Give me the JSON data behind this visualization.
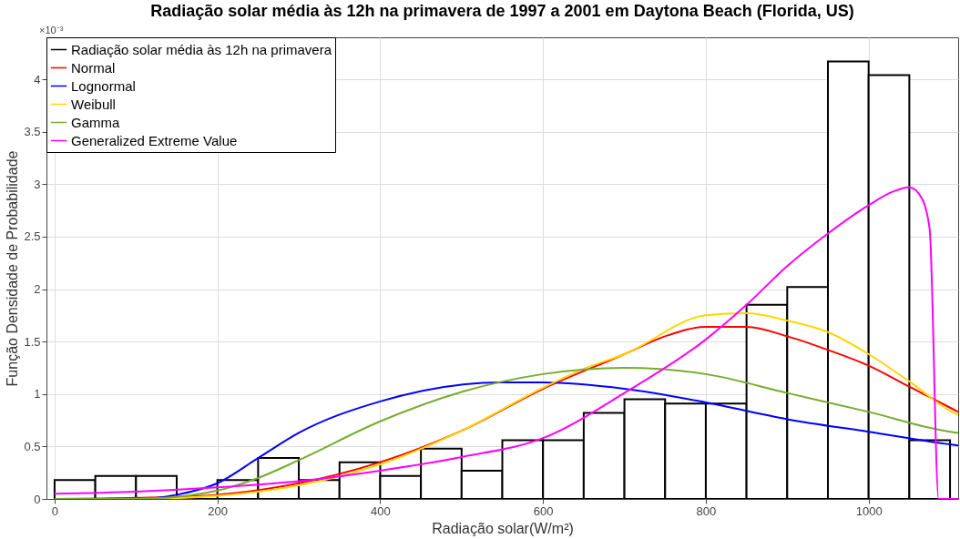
{
  "chart_data": {
    "type": "histogram",
    "title": "Radiação solar média às 12h na primavera de 1997 a 2001 em Daytona Beach (Florida, US)",
    "xlabel": "Radiação solar(W/m²)",
    "ylabel": "Função Densidade de Probabilidade",
    "annotations": [
      "×10⁻³"
    ],
    "xlim": [
      -10,
      1110
    ],
    "xticks": [
      0,
      200,
      400,
      600,
      800,
      1000
    ],
    "ylim": [
      0,
      4.4
    ],
    "yticks": [
      0,
      0.5,
      1,
      1.5,
      2,
      2.5,
      3,
      3.5,
      4
    ],
    "grid": true,
    "legend": "top left",
    "series": [
      {
        "name": "Radiação solar média às 12h na primavera",
        "color": "#000000",
        "bins": [
          0,
          50,
          100,
          150,
          200,
          250,
          300,
          350,
          400,
          450,
          500,
          550,
          600,
          650,
          700,
          750,
          800,
          850,
          900,
          950,
          1000,
          1050,
          1100
        ],
        "values": [
          0.18,
          0.22,
          0.22,
          0,
          0.18,
          0.39,
          0.18,
          0.35,
          0.22,
          0.48,
          0.27,
          0.56,
          0.56,
          0.82,
          0.95,
          0.91,
          0.91,
          1.85,
          2.02,
          4.17,
          4.04,
          0.56
        ]
      },
      {
        "name": "Normal",
        "type": "line",
        "color": "#ff0000",
        "x": [
          0,
          100,
          200,
          300,
          400,
          500,
          600,
          700,
          750,
          800,
          850,
          900,
          950,
          1000,
          1050,
          1100,
          1110
        ],
        "values": [
          0.0,
          0.01,
          0.04,
          0.15,
          0.35,
          0.65,
          1.05,
          1.38,
          1.55,
          1.64,
          1.64,
          1.55,
          1.42,
          1.27,
          1.07,
          0.87,
          0.83
        ]
      },
      {
        "name": "Lognormal",
        "type": "line",
        "color": "#0000ff",
        "x": [
          0,
          100,
          150,
          200,
          250,
          300,
          400,
          500,
          550,
          600,
          700,
          800,
          900,
          1000,
          1100,
          1110
        ],
        "values": [
          0.0,
          0.0,
          0.04,
          0.15,
          0.39,
          0.63,
          0.93,
          1.09,
          1.11,
          1.11,
          1.05,
          0.92,
          0.76,
          0.64,
          0.52,
          0.51
        ]
      },
      {
        "name": "Weibull",
        "type": "line",
        "color": "#ffd700",
        "x": [
          0,
          100,
          200,
          300,
          400,
          500,
          600,
          650,
          700,
          800,
          850,
          900,
          950,
          1000,
          1050,
          1100,
          1110
        ],
        "values": [
          0.0,
          0.0,
          0.03,
          0.13,
          0.33,
          0.65,
          1.06,
          1.24,
          1.38,
          1.75,
          1.77,
          1.7,
          1.59,
          1.38,
          1.12,
          0.84,
          0.8
        ]
      },
      {
        "name": "Gamma",
        "type": "line",
        "color": "#77ac30",
        "x": [
          0,
          100,
          150,
          200,
          250,
          300,
          400,
          500,
          600,
          700,
          800,
          900,
          1000,
          1100,
          1110
        ],
        "values": [
          0.0,
          0.0,
          0.02,
          0.08,
          0.2,
          0.37,
          0.74,
          1.02,
          1.19,
          1.25,
          1.19,
          1.01,
          0.83,
          0.64,
          0.63
        ]
      },
      {
        "name": "Generalized Extreme Value",
        "type": "line",
        "color": "#ff00ff",
        "x": [
          0,
          100,
          200,
          300,
          400,
          500,
          600,
          700,
          800,
          850,
          900,
          950,
          1000,
          1030,
          1050,
          1065,
          1075,
          1086,
          1110
        ],
        "values": [
          0.05,
          0.07,
          0.11,
          0.17,
          0.27,
          0.4,
          0.58,
          1.01,
          1.52,
          1.85,
          2.22,
          2.53,
          2.8,
          2.93,
          2.97,
          2.87,
          2.57,
          0,
          0
        ]
      }
    ]
  }
}
